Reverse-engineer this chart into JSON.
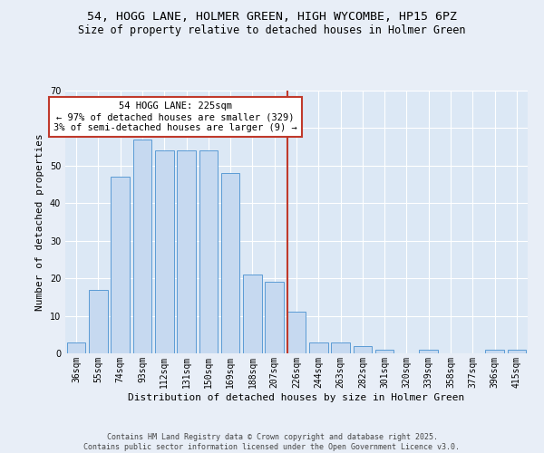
{
  "title1": "54, HOGG LANE, HOLMER GREEN, HIGH WYCOMBE, HP15 6PZ",
  "title2": "Size of property relative to detached houses in Holmer Green",
  "xlabel": "Distribution of detached houses by size in Holmer Green",
  "ylabel": "Number of detached properties",
  "categories": [
    "36sqm",
    "55sqm",
    "74sqm",
    "93sqm",
    "112sqm",
    "131sqm",
    "150sqm",
    "169sqm",
    "188sqm",
    "207sqm",
    "226sqm",
    "244sqm",
    "263sqm",
    "282sqm",
    "301sqm",
    "320sqm",
    "339sqm",
    "358sqm",
    "377sqm",
    "396sqm",
    "415sqm"
  ],
  "values": [
    3,
    17,
    47,
    57,
    54,
    54,
    54,
    48,
    21,
    19,
    11,
    3,
    3,
    2,
    1,
    0,
    1,
    0,
    0,
    1,
    1
  ],
  "bar_color": "#c6d9f0",
  "bar_edge_color": "#5b9bd5",
  "vline_color": "#c0392b",
  "annotation_text": "54 HOGG LANE: 225sqm\n← 97% of detached houses are smaller (329)\n3% of semi-detached houses are larger (9) →",
  "annotation_box_color": "#c0392b",
  "ylim": [
    0,
    70
  ],
  "yticks": [
    0,
    10,
    20,
    30,
    40,
    50,
    60,
    70
  ],
  "fig_bg_color": "#e8eef7",
  "ax_bg_color": "#dce8f5",
  "footer_text": "Contains HM Land Registry data © Crown copyright and database right 2025.\nContains public sector information licensed under the Open Government Licence v3.0.",
  "title1_fontsize": 9.5,
  "title2_fontsize": 8.5,
  "xlabel_fontsize": 8,
  "ylabel_fontsize": 8,
  "tick_fontsize": 7,
  "annotation_fontsize": 7.5,
  "footer_fontsize": 6
}
